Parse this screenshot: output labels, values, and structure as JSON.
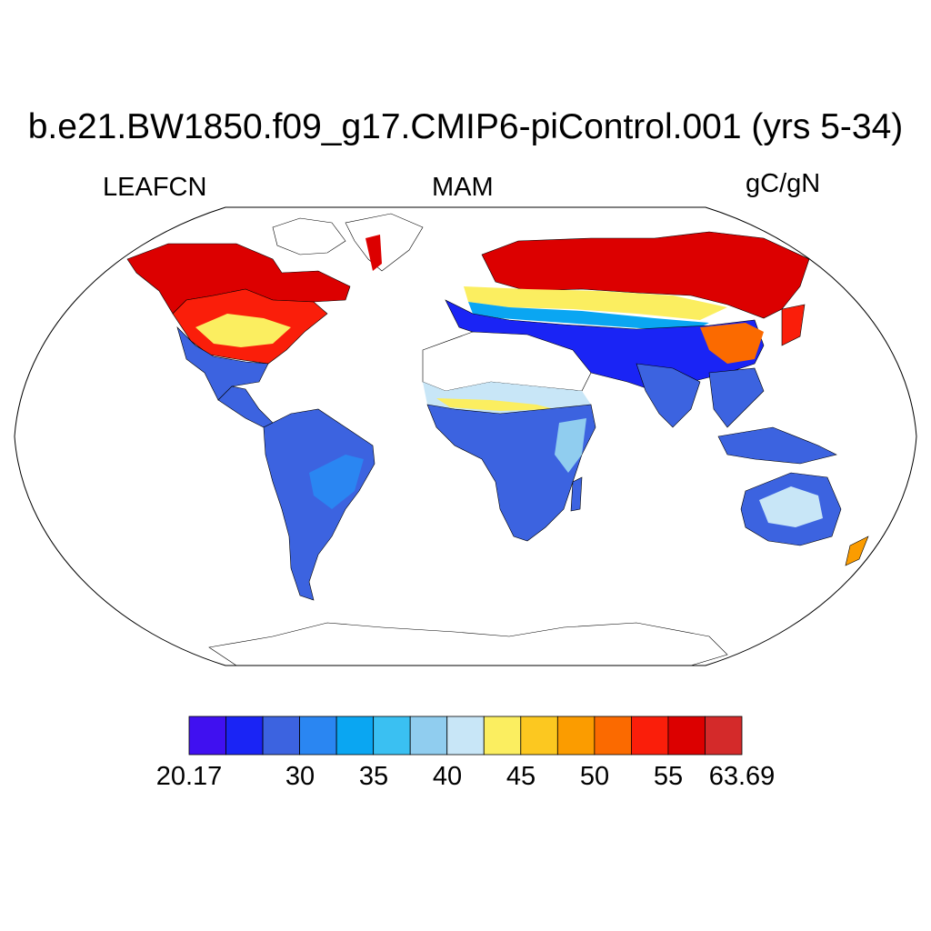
{
  "title": "b.e21.BW1850.f09_g17.CMIP6-piControl.001 (yrs 5-34)",
  "variable": "LEAFCN",
  "season": "MAM",
  "units": "gC/gN",
  "colorbar": {
    "colors": [
      "#4010f0",
      "#1a24f5",
      "#3c63e0",
      "#2a86f2",
      "#0aa6f2",
      "#3ac0f2",
      "#90cdef",
      "#c8e6f7",
      "#fbee60",
      "#fcc820",
      "#fb9c00",
      "#fb6a00",
      "#fa1e0a",
      "#dc0000",
      "#d42a2a"
    ],
    "tick_labels": [
      "20.17",
      "30",
      "35",
      "40",
      "45",
      "50",
      "55",
      "63.69"
    ]
  },
  "map_regions": [
    {
      "region": "high-latitude North America and Eurasia",
      "color": "#dc0000"
    },
    {
      "region": "eastern North America and mid Eurasia transition",
      "color": "#fa1e0a"
    },
    {
      "region": "Sahel and boreal boundary",
      "color": "#fbee60"
    },
    {
      "region": "tropics and subtropics",
      "color": "#3c63e0"
    },
    {
      "region": "Australia interior",
      "color": "#c8e6f7"
    },
    {
      "region": "Sahara and Antarctica (no data)",
      "color": "#ffffff"
    }
  ]
}
